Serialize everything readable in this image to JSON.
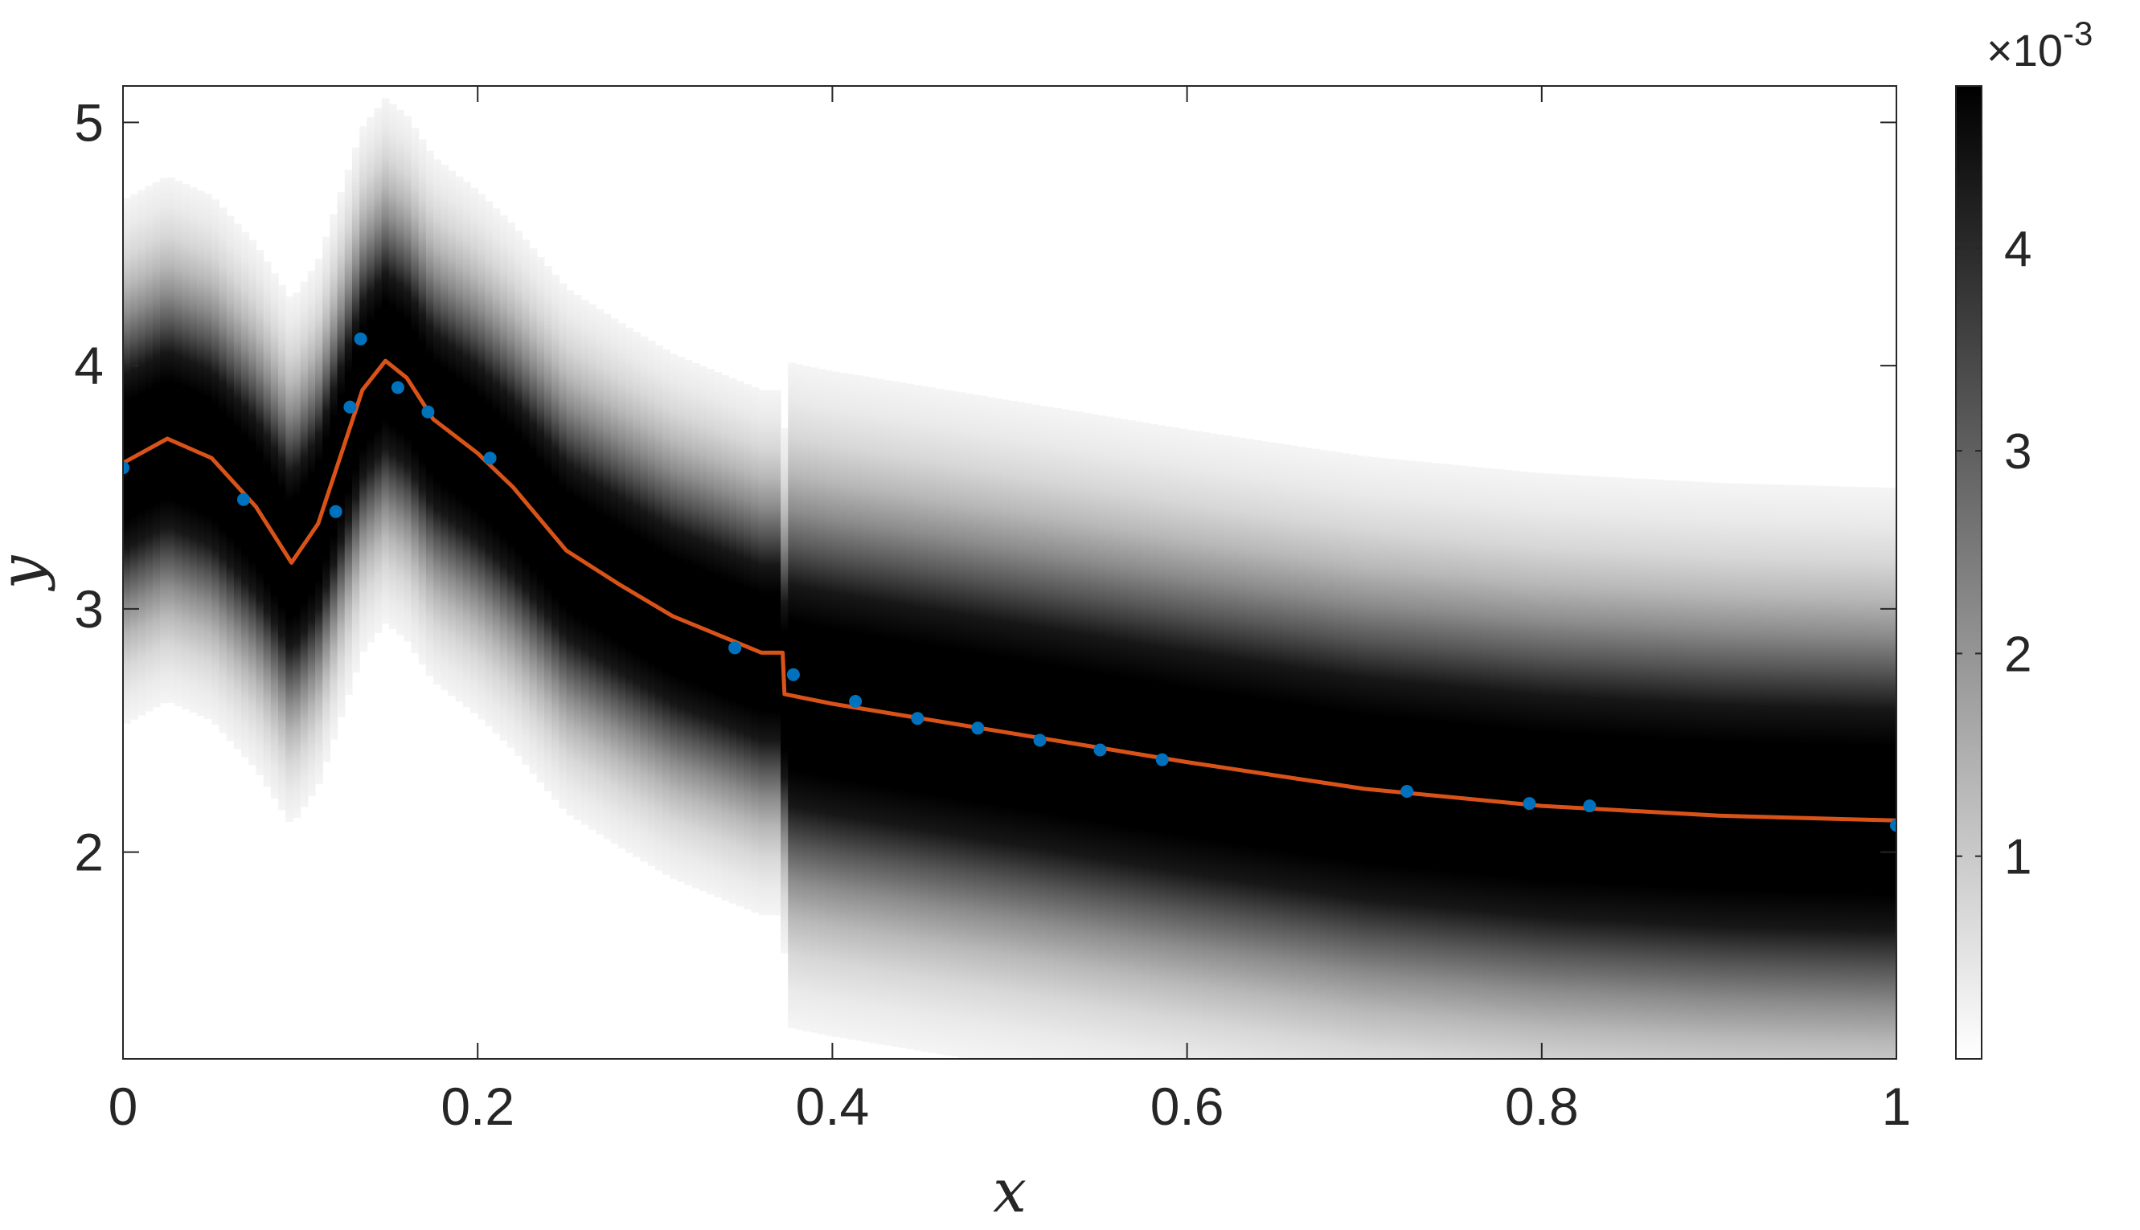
{
  "chart_data": {
    "type": "heatmap",
    "title": "",
    "xlabel": "x",
    "ylabel": "y",
    "xlim": [
      0,
      1
    ],
    "ylim": [
      1.15,
      5.15
    ],
    "x_ticks": [
      0,
      0.2,
      0.4,
      0.6,
      0.8,
      1
    ],
    "x_tick_labels": [
      "0",
      "0.2",
      "0.4",
      "0.6",
      "0.8",
      "1"
    ],
    "y_ticks": [
      2,
      3,
      4,
      5
    ],
    "y_tick_labels": [
      "2",
      "3",
      "4",
      "5"
    ],
    "grid": false,
    "colorbar": {
      "colormap": "gray-reversed",
      "range": [
        0,
        0.0048
      ],
      "ticks": [
        1,
        2,
        3,
        4
      ],
      "tick_labels": [
        "1",
        "2",
        "3",
        "4"
      ],
      "exponent_label": "×10",
      "exponent_value": "-3"
    },
    "series": [
      {
        "kind": "line",
        "color": "#D95319",
        "x": [
          0,
          0.025,
          0.05,
          0.075,
          0.095,
          0.11,
          0.125,
          0.135,
          0.148,
          0.16,
          0.175,
          0.2,
          0.22,
          0.25,
          0.28,
          0.31,
          0.34,
          0.36,
          0.372,
          0.373,
          0.4,
          0.45,
          0.5,
          0.55,
          0.6,
          0.7,
          0.8,
          0.9,
          1.0
        ],
        "y": [
          3.6,
          3.7,
          3.62,
          3.42,
          3.19,
          3.35,
          3.68,
          3.9,
          4.02,
          3.95,
          3.78,
          3.64,
          3.5,
          3.24,
          3.1,
          2.97,
          2.88,
          2.82,
          2.82,
          2.65,
          2.61,
          2.55,
          2.49,
          2.43,
          2.37,
          2.26,
          2.19,
          2.15,
          2.13
        ]
      },
      {
        "kind": "scatter",
        "color": "#0072BD",
        "x": [
          0,
          0.068,
          0.12,
          0.128,
          0.134,
          0.155,
          0.172,
          0.207,
          0.345,
          0.378,
          0.413,
          0.448,
          0.482,
          0.517,
          0.551,
          0.586,
          0.724,
          0.793,
          0.827,
          1.0
        ],
        "y": [
          3.58,
          3.45,
          3.4,
          3.83,
          4.11,
          3.91,
          3.81,
          3.62,
          2.84,
          2.73,
          2.62,
          2.55,
          2.51,
          2.46,
          2.42,
          2.38,
          2.25,
          2.2,
          2.19,
          2.11
        ]
      }
    ]
  }
}
